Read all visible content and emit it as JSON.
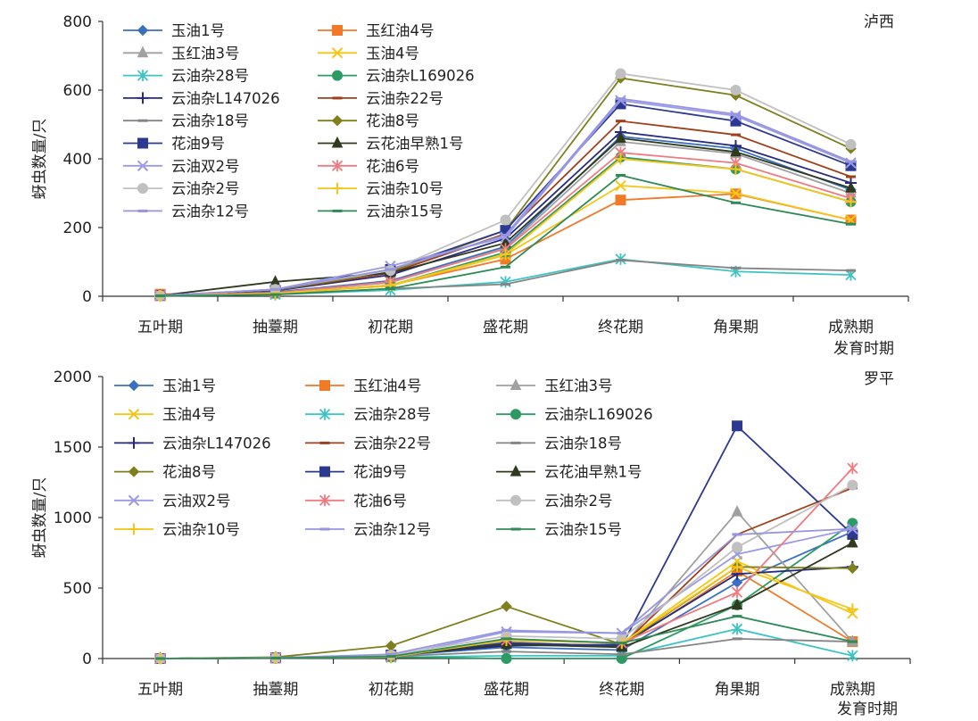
{
  "chart_data": [
    {
      "type": "line",
      "region": "泸西",
      "xlabel": "发育时期",
      "ylabel": "蚜虫数量/只",
      "categories": [
        "五叶期",
        "抽薹期",
        "初花期",
        "盛花期",
        "终花期",
        "角果期",
        "成熟期"
      ],
      "ylim": [
        0,
        800
      ],
      "yticks": [
        0,
        200,
        400,
        600,
        800
      ],
      "legend_columns": 2,
      "series": [
        {
          "name": "玉油1号",
          "color": "#3a6fc1",
          "marker": "diamond",
          "values": [
            2,
            12,
            45,
            145,
            465,
            430,
            310
          ]
        },
        {
          "name": "玉红油4号",
          "color": "#f07a28",
          "marker": "square",
          "values": [
            6,
            9,
            32,
            108,
            280,
            298,
            222
          ]
        },
        {
          "name": "玉红油3号",
          "color": "#a0a0a0",
          "marker": "triangle",
          "values": [
            2,
            10,
            40,
            140,
            450,
            415,
            300
          ]
        },
        {
          "name": "玉油4号",
          "color": "#f5c518",
          "marker": "x",
          "values": [
            1,
            8,
            30,
            120,
            322,
            300,
            222
          ]
        },
        {
          "name": "云油杂28号",
          "color": "#3fc4c4",
          "marker": "asterisk",
          "values": [
            1,
            5,
            18,
            42,
            108,
            72,
            62
          ]
        },
        {
          "name": "云油杂L169026",
          "color": "#2e9a63",
          "marker": "circle",
          "values": [
            2,
            8,
            32,
            128,
            405,
            370,
            275
          ]
        },
        {
          "name": "云油杂L147026",
          "color": "#262a80",
          "marker": "plus",
          "values": [
            2,
            16,
            62,
            168,
            478,
            438,
            330
          ]
        },
        {
          "name": "云油杂22号",
          "color": "#a0401a",
          "marker": "dash",
          "values": [
            3,
            17,
            68,
            182,
            510,
            470,
            348
          ]
        },
        {
          "name": "云油杂18号",
          "color": "#858585",
          "marker": "dash",
          "values": [
            1,
            6,
            22,
            35,
            105,
            82,
            75
          ]
        },
        {
          "name": "花油8号",
          "color": "#7f7f1e",
          "marker": "diamond",
          "values": [
            2,
            17,
            72,
            192,
            635,
            585,
            430
          ]
        },
        {
          "name": "花油9号",
          "color": "#2c3990",
          "marker": "square",
          "values": [
            2,
            18,
            78,
            192,
            560,
            510,
            380
          ]
        },
        {
          "name": "云花油早熟1号",
          "color": "#2f3a1e",
          "marker": "triangle",
          "values": [
            2,
            42,
            68,
            155,
            460,
            420,
            315
          ]
        },
        {
          "name": "云油双2号",
          "color": "#9a9ae8",
          "marker": "x",
          "values": [
            2,
            20,
            88,
            172,
            570,
            525,
            388
          ]
        },
        {
          "name": "花油6号",
          "color": "#f07a80",
          "marker": "asterisk",
          "values": [
            2,
            10,
            42,
            138,
            418,
            388,
            285
          ]
        },
        {
          "name": "云油杂2号",
          "color": "#c0c0c0",
          "marker": "circle",
          "values": [
            2,
            20,
            75,
            222,
            648,
            600,
            442
          ]
        },
        {
          "name": "云油杂10号",
          "color": "#f5c518",
          "marker": "plus",
          "values": [
            1,
            8,
            32,
            122,
            400,
            370,
            275
          ]
        },
        {
          "name": "云油杂12号",
          "color": "#9595e0",
          "marker": "dash",
          "values": [
            2,
            20,
            78,
            178,
            575,
            530,
            392
          ]
        },
        {
          "name": "云油杂15号",
          "color": "#2e8b57",
          "marker": "dash",
          "values": [
            1,
            5,
            22,
            85,
            352,
            272,
            210
          ]
        }
      ]
    },
    {
      "type": "line",
      "region": "罗平",
      "xlabel": "发育时期",
      "ylabel": "蚜虫数量/只",
      "categories": [
        "五叶期",
        "抽薹期",
        "初花期",
        "盛花期",
        "终花期",
        "角果期",
        "成熟期"
      ],
      "ylim": [
        0,
        2000
      ],
      "yticks": [
        0,
        500,
        1000,
        1500,
        2000
      ],
      "legend_columns": 3,
      "series": [
        {
          "name": "玉油1号",
          "color": "#3a6fc1",
          "marker": "diamond",
          "values": [
            0,
            5,
            20,
            80,
            60,
            540,
            900
          ]
        },
        {
          "name": "玉红油4号",
          "color": "#f07a28",
          "marker": "square",
          "values": [
            0,
            5,
            15,
            110,
            90,
            620,
            120
          ]
        },
        {
          "name": "玉红油3号",
          "color": "#a0a0a0",
          "marker": "triangle",
          "values": [
            0,
            5,
            18,
            120,
            80,
            1040,
            120
          ]
        },
        {
          "name": "玉油4号",
          "color": "#f5c518",
          "marker": "x",
          "values": [
            0,
            5,
            12,
            140,
            110,
            690,
            320
          ]
        },
        {
          "name": "云油杂28号",
          "color": "#3fc4c4",
          "marker": "asterisk",
          "values": [
            0,
            3,
            8,
            20,
            20,
            210,
            20
          ]
        },
        {
          "name": "云油杂L169026",
          "color": "#2e9a63",
          "marker": "circle",
          "values": [
            0,
            3,
            10,
            0,
            0,
            380,
            960
          ]
        },
        {
          "name": "云油杂L147026",
          "color": "#262a80",
          "marker": "plus",
          "values": [
            0,
            5,
            25,
            90,
            100,
            600,
            650
          ]
        },
        {
          "name": "云油杂22号",
          "color": "#a0401a",
          "marker": "dash",
          "values": [
            0,
            5,
            20,
            110,
            90,
            880,
            1210
          ]
        },
        {
          "name": "云油杂18号",
          "color": "#858585",
          "marker": "dash",
          "values": [
            0,
            3,
            15,
            50,
            30,
            140,
            120
          ]
        },
        {
          "name": "花油8号",
          "color": "#7f7f1e",
          "marker": "diamond",
          "values": [
            0,
            10,
            90,
            370,
            100,
            650,
            640
          ]
        },
        {
          "name": "花油9号",
          "color": "#2c3990",
          "marker": "square",
          "values": [
            0,
            5,
            25,
            110,
            90,
            1650,
            880
          ]
        },
        {
          "name": "云花油早熟1号",
          "color": "#2f3a1e",
          "marker": "triangle",
          "values": [
            0,
            5,
            20,
            100,
            80,
            380,
            820
          ]
        },
        {
          "name": "云油双2号",
          "color": "#9a9ae8",
          "marker": "x",
          "values": [
            0,
            5,
            15,
            190,
            180,
            740,
            920
          ]
        },
        {
          "name": "花油6号",
          "color": "#f07a80",
          "marker": "asterisk",
          "values": [
            0,
            5,
            15,
            130,
            110,
            470,
            1350
          ]
        },
        {
          "name": "云油杂2号",
          "color": "#c0c0c0",
          "marker": "circle",
          "values": [
            0,
            5,
            25,
            160,
            140,
            790,
            1230
          ]
        },
        {
          "name": "云油杂10号",
          "color": "#f5c518",
          "marker": "plus",
          "values": [
            0,
            5,
            12,
            130,
            110,
            650,
            350
          ]
        },
        {
          "name": "云油杂12号",
          "color": "#9595e0",
          "marker": "dash",
          "values": [
            0,
            5,
            30,
            200,
            180,
            880,
            920
          ]
        },
        {
          "name": "云油杂15号",
          "color": "#2e8b57",
          "marker": "dash",
          "values": [
            0,
            3,
            15,
            140,
            110,
            300,
            120
          ]
        }
      ]
    }
  ]
}
